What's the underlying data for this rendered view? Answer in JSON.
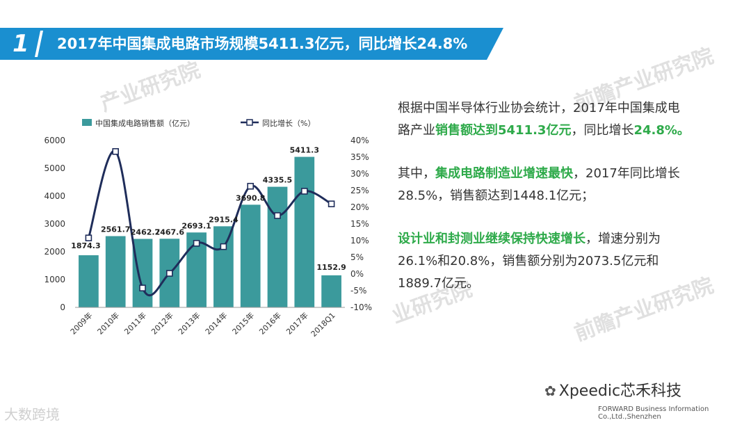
{
  "header": {
    "number": "1",
    "title": "2017年中国集成电路市场规模5411.3亿元，同比增长24.8%"
  },
  "chart_data": {
    "type": "bar",
    "categories": [
      "2009年",
      "2010年",
      "2011年",
      "2012年",
      "2013年",
      "2014年",
      "2015年",
      "2016年",
      "2017年",
      "2018Q1"
    ],
    "bar_labels": [
      "1874.3",
      "2561.7",
      "2462.7",
      "2467.6",
      "2693.1",
      "2915.4",
      "3690.8",
      "4335.5",
      "5411.3",
      "1152.9"
    ],
    "series": [
      {
        "name": "中国集成电路销售额（亿元）",
        "type": "bar",
        "axis": "left",
        "color": "#3b9a9c",
        "values": [
          1874.3,
          2561.7,
          2462.7,
          2467.6,
          2693.1,
          2915.4,
          3690.8,
          4335.5,
          5411.3,
          1152.9
        ]
      },
      {
        "name": "同比增长（%）",
        "type": "line",
        "axis": "right",
        "color": "#1f2d5a",
        "values": [
          10.8,
          36.7,
          -4.2,
          0.2,
          9.2,
          8.2,
          26.3,
          17.5,
          24.8,
          21
        ]
      }
    ],
    "left_ticks": [
      "0",
      "1000",
      "2000",
      "3000",
      "4000",
      "5000",
      "6000"
    ],
    "right_ticks": [
      "-10%",
      "-5%",
      "0%",
      "5%",
      "10%",
      "15%",
      "20%",
      "25%",
      "30%",
      "35%",
      "40%"
    ],
    "ylim": [
      0,
      6000
    ],
    "y2lim": [
      -10,
      40
    ],
    "legend_position": "top"
  },
  "text_panel": {
    "p1": [
      "根据中国半导体行业协会统计，2017年中国集成电路产业",
      "销售额达到5411.3亿元",
      "，同比增长",
      "24.8%。"
    ],
    "p2": [
      "其中，",
      "集成电路制造业增速最快",
      "，2017年同比增长28.5%，销售额达到1448.1亿元；"
    ],
    "p3": [
      "设计业和封测业继续保持快速增长",
      "，增速分别为26.1%和20.8%，销售额分别为2073.5亿元和1889.7亿元。"
    ]
  },
  "watermark": {
    "text1": "前瞻产业研究院",
    "text2": "产业研究院",
    "text3": "业研究院"
  },
  "footer": {
    "brand": "Xpeedic芯禾科技",
    "company": "FORWARD Business Information Co.,Ltd.,Shenzhen",
    "corner": "大数跨境"
  },
  "colors": {
    "header_blue": "#1a8fd0",
    "bar_teal": "#3b9a9c",
    "line_navy": "#1f2d5a",
    "highlight_green": "#2eaa4a"
  }
}
